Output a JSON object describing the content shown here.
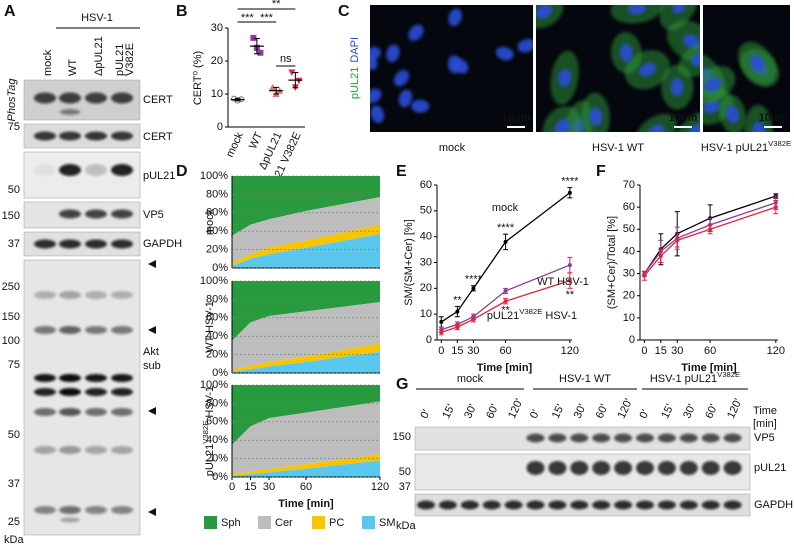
{
  "panel_labels": {
    "a": "A",
    "b": "B",
    "c": "C",
    "d": "D",
    "e": "E",
    "f": "F",
    "g": "G"
  },
  "blot_a": {
    "group": "HSV-1",
    "lanes": [
      [
        "mock"
      ],
      [
        "WT"
      ],
      [
        "ΔpUL21"
      ],
      [
        "pUL21",
        "V382E"
      ]
    ],
    "stain": "PhosTag",
    "bands": [
      "CERT",
      "CERT",
      "pUL21",
      "VP5",
      "GAPDH"
    ],
    "akt": [
      "Akt",
      "sub"
    ],
    "markers": [
      75,
      50,
      150,
      37,
      250,
      150,
      100,
      75,
      50,
      37,
      25
    ],
    "unit": "kDa"
  },
  "panel_c": {
    "stain": [
      "pUL21",
      "DAPI"
    ],
    "scale": "10μm",
    "captions": [
      "mock",
      "HSV-1 WT",
      "HSV-1 pUL21"
    ],
    "caption_sup": "V382E"
  },
  "blot_g": {
    "groups": [
      "mock",
      "HSV-1 WT",
      "HSV-1 pUL21"
    ],
    "group_sup": "V382E",
    "times": [
      "0'",
      "15'",
      "30'",
      "60'",
      "120'"
    ],
    "time_label": [
      "Time",
      "[min]"
    ],
    "bands": [
      "VP5",
      "pUL21",
      "GAPDH"
    ],
    "markers": [
      150,
      50,
      37
    ],
    "unit": "kDa"
  },
  "chart_data": [
    {
      "type": "dot",
      "ylabel": "CERT⁰ (%)",
      "categories": [
        "mock",
        "WT",
        "ΔpUL21",
        "pUL21 V382E"
      ],
      "colors": [
        "#777777",
        "#8e3a9c",
        "#e8706a",
        "#e0263a"
      ],
      "points": [
        [
          8.6,
          8.0,
          8.4
        ],
        [
          27.0,
          24.0,
          22.5
        ],
        [
          12.0,
          10.0,
          11.0
        ],
        [
          16.5,
          12.0,
          14.0
        ]
      ],
      "means": [
        8.3,
        24.5,
        11.0,
        14.2
      ],
      "sd": [
        0.4,
        2.3,
        1.0,
        2.3
      ],
      "ylim": [
        0,
        30
      ],
      "yticks": [
        0,
        10,
        20,
        30
      ],
      "significance": [
        "***",
        "***",
        "**",
        "ns"
      ]
    },
    {
      "type": "stacked-area",
      "title": "mock",
      "x": [
        0,
        15,
        30,
        60,
        120
      ],
      "xlim": [
        0,
        120
      ],
      "ylim": [
        0,
        100
      ],
      "yticks": [
        {
          "value": 0,
          "label": "0%"
        },
        {
          "value": 20,
          "label": "20%"
        },
        {
          "value": 40,
          "label": "40%"
        },
        {
          "value": 60,
          "label": "60%"
        },
        {
          "value": 80,
          "label": "80%"
        },
        {
          "value": 100,
          "label": "100%"
        }
      ],
      "grid": true,
      "series": [
        {
          "name": "Sph",
          "color": "#2a9a3e",
          "values": [
            65,
            53,
            47,
            38,
            23
          ]
        },
        {
          "name": "Cer",
          "color": "#bdbdbd",
          "values": [
            30,
            32,
            31,
            32,
            30
          ]
        },
        {
          "name": "PC",
          "color": "#f6c500",
          "values": [
            3,
            5,
            7,
            8,
            10
          ]
        },
        {
          "name": "SM",
          "color": "#5ac8ee",
          "values": [
            2,
            10,
            15,
            22,
            37
          ]
        }
      ]
    },
    {
      "type": "stacked-area",
      "title": "WT HSV-1",
      "x": [
        0,
        15,
        30,
        60,
        120
      ],
      "xlim": [
        0,
        120
      ],
      "ylim": [
        0,
        100
      ],
      "yticks": [
        {
          "value": 0,
          "label": "0%"
        },
        {
          "value": 20,
          "label": "20%"
        },
        {
          "value": 40,
          "label": "40%"
        },
        {
          "value": 60,
          "label": "60%"
        },
        {
          "value": 80,
          "label": "80%"
        },
        {
          "value": 100,
          "label": "100%"
        }
      ],
      "grid": true,
      "series": [
        {
          "name": "Sph",
          "color": "#2a9a3e",
          "values": [
            65,
            45,
            38,
            33,
            23
          ]
        },
        {
          "name": "Cer",
          "color": "#bdbdbd",
          "values": [
            32,
            47,
            50,
            49,
            45
          ]
        },
        {
          "name": "PC",
          "color": "#f6c500",
          "values": [
            2,
            4,
            5,
            6,
            9
          ]
        },
        {
          "name": "SM",
          "color": "#5ac8ee",
          "values": [
            1,
            4,
            7,
            12,
            23
          ]
        }
      ]
    },
    {
      "type": "stacked-area",
      "title": "pUL21",
      "title_sup": "V382E",
      "title_suffix": " HSV-1",
      "x": [
        0,
        15,
        30,
        60,
        120
      ],
      "xlim": [
        0,
        120
      ],
      "xticks": [
        0,
        15,
        30,
        60,
        120
      ],
      "xlabel": "Time [min]",
      "ylim": [
        0,
        100
      ],
      "yticks": [
        {
          "value": 0,
          "label": "0%"
        },
        {
          "value": 20,
          "label": "20%"
        },
        {
          "value": 40,
          "label": "40%"
        },
        {
          "value": 60,
          "label": "60%"
        },
        {
          "value": 80,
          "label": "80%"
        },
        {
          "value": 100,
          "label": "100%"
        }
      ],
      "grid": true,
      "legend": "bottom",
      "series": [
        {
          "name": "Sph",
          "color": "#2a9a3e",
          "values": [
            65,
            45,
            36,
            30,
            18
          ]
        },
        {
          "name": "Cer",
          "color": "#bdbdbd",
          "values": [
            32,
            49,
            55,
            56,
            57
          ]
        },
        {
          "name": "PC",
          "color": "#f6c500",
          "values": [
            2,
            3,
            4,
            5,
            7
          ]
        },
        {
          "name": "SM",
          "color": "#5ac8ee",
          "values": [
            1,
            3,
            5,
            9,
            18
          ]
        }
      ]
    },
    {
      "type": "line",
      "xlabel": "Time [min]",
      "ylabel": "SM/(SM+Cer) [%]",
      "x": [
        0,
        15,
        30,
        60,
        120
      ],
      "xlim": [
        -4,
        122
      ],
      "xticks": [
        0,
        15,
        30,
        60,
        120
      ],
      "ylim": [
        0,
        60
      ],
      "yticks": [
        0,
        10,
        20,
        30,
        40,
        50,
        60
      ],
      "series": [
        {
          "name": "mock",
          "color": "#000000",
          "values": [
            7,
            11,
            20,
            38,
            57
          ],
          "errors": [
            2,
            2,
            1,
            3,
            2
          ],
          "annotations": [
            {
              "x": 15,
              "label": "**"
            },
            {
              "x": 30,
              "label": "****"
            },
            {
              "x": 60,
              "label": "****"
            },
            {
              "x": 120,
              "label": "****"
            }
          ]
        },
        {
          "name": "WT HSV-1",
          "color": "#8e3a9c",
          "values": [
            4,
            6,
            9,
            19,
            29
          ],
          "errors": [
            1,
            1,
            1,
            1,
            3
          ]
        },
        {
          "name": "pUL21",
          "name_sup": "V382E",
          "name_suffix": " HSV-1",
          "color": "#e0263a",
          "values": [
            3,
            5,
            8,
            15,
            23
          ],
          "errors": [
            1,
            1,
            1,
            1,
            3
          ],
          "annotations": [
            {
              "x": 60,
              "label": "**"
            },
            {
              "x": 120,
              "label": "**"
            }
          ]
        }
      ]
    },
    {
      "type": "line",
      "xlabel": "Time [min]",
      "ylabel": "(SM+Cer)/Total [%]",
      "x": [
        0,
        15,
        30,
        60,
        120
      ],
      "xlim": [
        -4,
        122
      ],
      "xticks": [
        0,
        15,
        30,
        60,
        120
      ],
      "ylim": [
        0,
        70
      ],
      "yticks": [
        0,
        10,
        20,
        30,
        40,
        50,
        60,
        70
      ],
      "series": [
        {
          "color": "#000000",
          "values": [
            30,
            41,
            48,
            55,
            65
          ],
          "errors": [
            1,
            7,
            10,
            6,
            1
          ]
        },
        {
          "color": "#8e3a9c",
          "values": [
            30,
            40,
            46,
            52,
            62
          ],
          "errors": [
            1,
            5,
            5,
            3,
            3
          ]
        },
        {
          "color": "#e0263a",
          "values": [
            29,
            38,
            45,
            50,
            60
          ],
          "errors": [
            2,
            3,
            3,
            2,
            3
          ]
        }
      ]
    }
  ]
}
